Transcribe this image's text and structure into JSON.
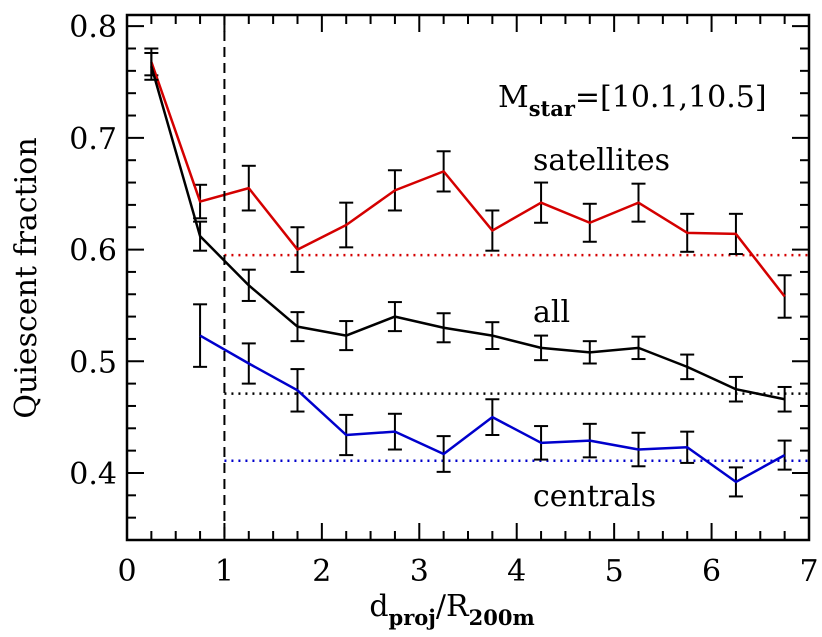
{
  "chart_data": {
    "type": "line",
    "xlabel": {
      "main": "d",
      "sub1": "proj",
      "sep": "/R",
      "sub2": "200m"
    },
    "ylabel": "Quiescent fraction",
    "xlim": [
      0,
      7
    ],
    "ylim": [
      0.34,
      0.81
    ],
    "xticks": [
      0,
      1,
      2,
      3,
      4,
      5,
      6,
      7
    ],
    "xtick_labels": [
      "0",
      "1",
      "2",
      "3",
      "4",
      "5",
      "6",
      "7"
    ],
    "yticks": [
      0.4,
      0.5,
      0.6,
      0.7,
      0.8
    ],
    "ytick_labels": [
      "0.4",
      "0.5",
      "0.6",
      "0.7",
      "0.8"
    ],
    "x_minor_step": 0.25,
    "y_minor_step": 0.02,
    "vline_x": 1,
    "mass_label": {
      "prefix": "M",
      "sub": "star",
      "range": "=[10.1,10.5]"
    },
    "series": [
      {
        "name": "satellites",
        "color": "#d40000",
        "x": [
          0.25,
          0.75,
          1.25,
          1.75,
          2.25,
          2.75,
          3.25,
          3.75,
          4.25,
          4.75,
          5.25,
          5.75,
          6.25,
          6.75
        ],
        "y": [
          0.768,
          0.643,
          0.655,
          0.6,
          0.622,
          0.653,
          0.67,
          0.617,
          0.642,
          0.624,
          0.642,
          0.615,
          0.614,
          0.558
        ],
        "err": [
          0.012,
          0.015,
          0.02,
          0.02,
          0.02,
          0.018,
          0.018,
          0.018,
          0.018,
          0.017,
          0.017,
          0.017,
          0.018,
          0.019
        ],
        "reference": 0.595
      },
      {
        "name": "all",
        "color": "#000000",
        "x": [
          0.25,
          0.75,
          1.25,
          1.75,
          2.25,
          2.75,
          3.25,
          3.75,
          4.25,
          4.75,
          5.25,
          5.75,
          6.25,
          6.75
        ],
        "y": [
          0.764,
          0.612,
          0.568,
          0.531,
          0.523,
          0.54,
          0.53,
          0.523,
          0.512,
          0.508,
          0.512,
          0.495,
          0.475,
          0.466
        ],
        "err": [
          0.012,
          0.013,
          0.014,
          0.013,
          0.013,
          0.013,
          0.013,
          0.012,
          0.011,
          0.01,
          0.01,
          0.011,
          0.011,
          0.011
        ],
        "reference": 0.471
      },
      {
        "name": "centrals",
        "color": "#0000cc",
        "x": [
          0.75,
          1.25,
          1.75,
          2.25,
          2.75,
          3.25,
          3.75,
          4.25,
          4.75,
          5.25,
          5.75,
          6.25,
          6.75
        ],
        "y": [
          0.523,
          0.498,
          0.474,
          0.434,
          0.437,
          0.417,
          0.45,
          0.427,
          0.429,
          0.421,
          0.423,
          0.392,
          0.416
        ],
        "err": [
          0.028,
          0.018,
          0.019,
          0.018,
          0.016,
          0.016,
          0.016,
          0.015,
          0.015,
          0.015,
          0.014,
          0.013,
          0.013
        ],
        "reference": 0.411
      }
    ],
    "annotations": [
      "satellites",
      "all",
      "centrals"
    ]
  }
}
